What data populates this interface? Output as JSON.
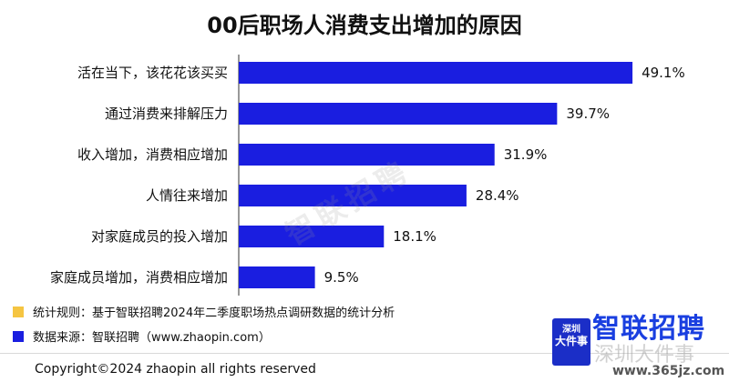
{
  "chart_data": {
    "type": "bar",
    "orientation": "horizontal",
    "title": "00后职场人消费支出增加的原因",
    "categories": [
      "活在当下，该花花该买买",
      "通过消费来排解压力",
      "收入增加，消费相应增加",
      "人情往来增加",
      "对家庭成员的投入增加",
      "家庭成员增加，消费相应增加"
    ],
    "values": [
      49.1,
      39.7,
      31.9,
      28.4,
      18.1,
      9.5
    ],
    "value_labels": [
      "49.1%",
      "39.7%",
      "31.9%",
      "28.4%",
      "18.1%",
      "9.5%"
    ],
    "unit": "%",
    "xlim": [
      0,
      50
    ],
    "bar_color": "#1a1ee0",
    "grid": false,
    "legend": "none"
  },
  "watermark": "智联招聘",
  "notes": {
    "rule_label": "统计规则：基于智联招聘2024年二季度职场热点调研数据的统计分析",
    "rule_color": "#f5c542",
    "source_label": "数据来源：智联招聘（www.zhaopin.com）",
    "source_color": "#1a1ee0"
  },
  "footer": {
    "copyright": "Copyright©2024 zhaopin all rights reserved"
  },
  "brand": {
    "logo_text": "智联招聘",
    "badge_line1": "深圳",
    "badge_line2": "大件事",
    "site_watermark": "深圳大件事",
    "site_url": "www.365jz.com"
  }
}
